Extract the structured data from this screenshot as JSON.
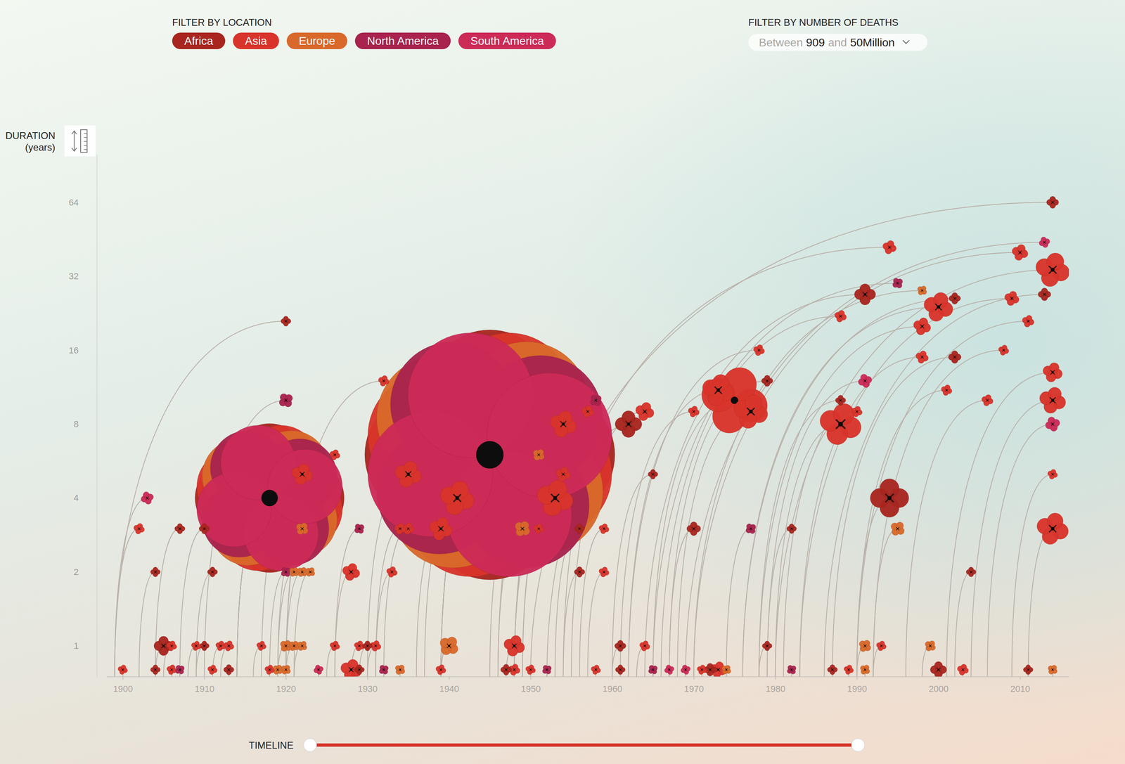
{
  "chart_data": {
    "type": "bubble",
    "legend_title": "FILTER BY LOCATION",
    "legend": "top",
    "size_range": {
      "title": "FILTER BY NUMBER OF DEATHS",
      "prefix": "Between",
      "min": 909,
      "joiner": "and",
      "max": {
        "value": 50000000,
        "label": "50Million"
      }
    },
    "ylabel": "DURATION",
    "ylabel_unit": "(years)",
    "timeline_label": "TIMELINE",
    "log": "y",
    "grid": false,
    "xlim": [
      1898,
      2016
    ],
    "xticks": [
      1900,
      1910,
      1920,
      1930,
      1940,
      1950,
      1960,
      1970,
      1980,
      1990,
      2000,
      2010
    ],
    "ylim": [
      0.75,
      100
    ],
    "yticks": [
      1,
      2,
      4,
      8,
      16,
      32,
      64
    ],
    "series": [
      {
        "name": "Africa",
        "color": "#a8261f",
        "x": [
          1904,
          1913,
          1929,
          1947,
          1961,
          1972,
          1987,
          2000,
          2011,
          1905,
          1910,
          1930,
          1961,
          1979,
          1904,
          1911,
          1956,
          2004,
          1907,
          1910,
          1956,
          1970,
          1982,
          1994,
          1965,
          1962,
          1988,
          1979,
          1920,
          1991,
          2002,
          2002,
          2014,
          2013,
          1918,
          1945
        ],
        "start": [
          1904,
          1913,
          1929,
          1947,
          1961,
          1972,
          1987,
          2000,
          2011,
          1904,
          1909,
          1929,
          1960,
          1978,
          1902,
          1909,
          1954,
          2002,
          1904,
          1907,
          1953,
          1967,
          1979,
          1990,
          1960,
          1954,
          1978,
          1967,
          1899,
          1964,
          1976,
          1987,
          1950,
          1986,
          1914,
          1939
        ],
        "values": [
          0.8,
          0.8,
          0.8,
          0.8,
          0.8,
          0.8,
          0.8,
          0.8,
          0.8,
          1,
          1,
          1,
          1,
          1,
          2,
          2,
          2,
          2,
          3,
          3,
          3,
          3,
          3,
          4,
          5,
          8,
          10,
          12,
          21,
          27,
          26,
          15,
          64,
          27,
          4,
          6
        ],
        "sizes": [
          3000,
          5000,
          4000,
          8000,
          3000,
          20000,
          4000,
          60000,
          3000,
          110000,
          3000,
          4000,
          10000,
          3000,
          3000,
          4000,
          6000,
          3000,
          5000,
          6000,
          4000,
          30000,
          3000,
          800000,
          3000,
          300000,
          5000,
          10000,
          4000,
          150000,
          12000,
          20000,
          15000,
          20000,
          17000000,
          50000000
        ]
      },
      {
        "name": "Asia",
        "color": "#d9342b",
        "x": [
          1900,
          1906,
          1911,
          1918,
          1928,
          1939,
          1948,
          1950,
          1958,
          1971,
          1973,
          1989,
          2003,
          1906,
          1909,
          1912,
          1913,
          1917,
          1926,
          1929,
          1931,
          1948,
          1964,
          1993,
          1928,
          1933,
          1959,
          1902,
          1934,
          1935,
          1939,
          1951,
          1959,
          2014,
          1926,
          1932,
          1941,
          1935,
          1953,
          1954,
          1957,
          1964,
          1970,
          1975,
          1973,
          1977,
          1988,
          1990,
          1978,
          1988,
          1998,
          2000,
          1998,
          2009,
          2011,
          2008,
          2006,
          2001,
          2010,
          1994,
          2014,
          2014,
          2014,
          2014,
          1922,
          1954,
          1918,
          1945
        ],
        "start": [
          1900,
          1906,
          1911,
          1918,
          1928,
          1939,
          1948,
          1950,
          1958,
          1971,
          1973,
          1989,
          2003,
          1905,
          1908,
          1911,
          1912,
          1916,
          1925,
          1928,
          1930,
          1947,
          1963,
          1992,
          1926,
          1931,
          1957,
          1899,
          1931,
          1932,
          1936,
          1948,
          1956,
          2011,
          1920,
          1920,
          1937,
          1930,
          1949,
          1946,
          1948,
          1955,
          1961,
          1965,
          1962,
          1968,
          1980,
          1981,
          1962,
          1966,
          1978,
          1976,
          1983,
          1983,
          1990,
          1992,
          1996,
          1990,
          1970,
          1952,
          1980,
          2001,
          2009,
          2004,
          1917,
          1949,
          1914,
          1939
        ],
        "values": [
          0.8,
          0.8,
          0.8,
          0.8,
          0.8,
          0.8,
          0.8,
          0.8,
          0.8,
          0.8,
          0.8,
          0.8,
          0.8,
          1,
          1,
          1,
          1,
          1,
          1,
          1,
          1,
          1,
          1,
          1,
          2,
          2,
          2,
          3,
          3,
          3,
          3,
          3,
          3,
          3,
          6,
          12,
          4,
          5,
          4,
          8,
          9,
          9,
          9,
          10,
          11,
          9,
          8,
          9,
          16,
          22,
          20,
          24,
          15,
          26,
          21,
          16,
          10,
          11,
          40,
          42,
          34,
          13,
          5,
          10,
          5,
          5,
          4,
          6
        ],
        "sizes": [
          3000,
          4000,
          3000,
          3000,
          150000,
          5000,
          12000,
          4000,
          3000,
          3000,
          60000,
          3000,
          10000,
          5000,
          3000,
          4000,
          6000,
          3000,
          4000,
          5000,
          8000,
          150000,
          6000,
          4000,
          80000,
          8000,
          5000,
          8000,
          10000,
          12000,
          200000,
          4000,
          5000,
          500000,
          6000,
          8000,
          600000,
          300000,
          700000,
          300000,
          15000,
          100000,
          10000,
          3000000,
          500000,
          600000,
          1000000,
          8000,
          10000,
          15000,
          80000,
          400000,
          20000,
          40000,
          15000,
          6000,
          12000,
          8000,
          60000,
          30000,
          600000,
          120000,
          4000,
          300000,
          150000,
          40000,
          17000000,
          50000000
        ]
      },
      {
        "name": "Europe",
        "color": "#d9692b",
        "x": [
          1919,
          1920,
          1934,
          1974,
          1991,
          2014,
          1920,
          1921,
          1922,
          1940,
          1991,
          1999,
          1921,
          1922,
          1923,
          1922,
          1949,
          1995,
          1951,
          1998,
          1918,
          1945
        ],
        "start": [
          1919,
          1920,
          1934,
          1974,
          1991,
          2014,
          1919,
          1920,
          1921,
          1939,
          1990,
          1998,
          1919,
          1920,
          1921,
          1919,
          1946,
          1992,
          1945,
          1970,
          1914,
          1939
        ],
        "values": [
          0.8,
          0.8,
          0.8,
          0.8,
          0.8,
          0.8,
          1,
          1,
          1,
          1,
          1,
          1,
          2,
          2,
          2,
          3,
          3,
          3,
          6,
          28,
          4,
          6
        ],
        "sizes": [
          5000,
          4000,
          6000,
          3000,
          5000,
          4000,
          15000,
          6000,
          5000,
          120000,
          20000,
          10000,
          4000,
          5000,
          3000,
          20000,
          60000,
          40000,
          15000,
          4000,
          17000000,
          50000000
        ]
      },
      {
        "name": "North America",
        "color": "#a8234e",
        "x": [
          1907,
          1932,
          1952,
          1965,
          1982,
          1920,
          1977,
          1929,
          1920,
          1958,
          1995,
          1918,
          1945
        ],
        "start": [
          1907,
          1932,
          1952,
          1965,
          1982,
          1918,
          1974,
          1926,
          1910,
          1948,
          1965,
          1914,
          1939
        ],
        "values": [
          0.8,
          0.8,
          0.8,
          0.8,
          0.8,
          2,
          3,
          3,
          10,
          10,
          30,
          4,
          6
        ],
        "sizes": [
          3000,
          4000,
          3000,
          3000,
          3000,
          5000,
          8000,
          6000,
          40000,
          15000,
          8000,
          17000000,
          50000000
        ]
      },
      {
        "name": "South America",
        "color": "#cc2b57",
        "x": [
          1924,
          1967,
          1969,
          1903,
          1991,
          2013,
          2014,
          1918,
          1945
        ],
        "start": [
          1924,
          1967,
          1969,
          1899,
          1979,
          1969,
          2006,
          1914,
          1939
        ],
        "values": [
          0.8,
          0.8,
          0.8,
          4,
          12,
          44,
          8,
          4,
          6
        ],
        "sizes": [
          3000,
          3000,
          3000,
          20000,
          30000,
          8000,
          40000,
          17000000,
          50000000
        ]
      }
    ]
  }
}
